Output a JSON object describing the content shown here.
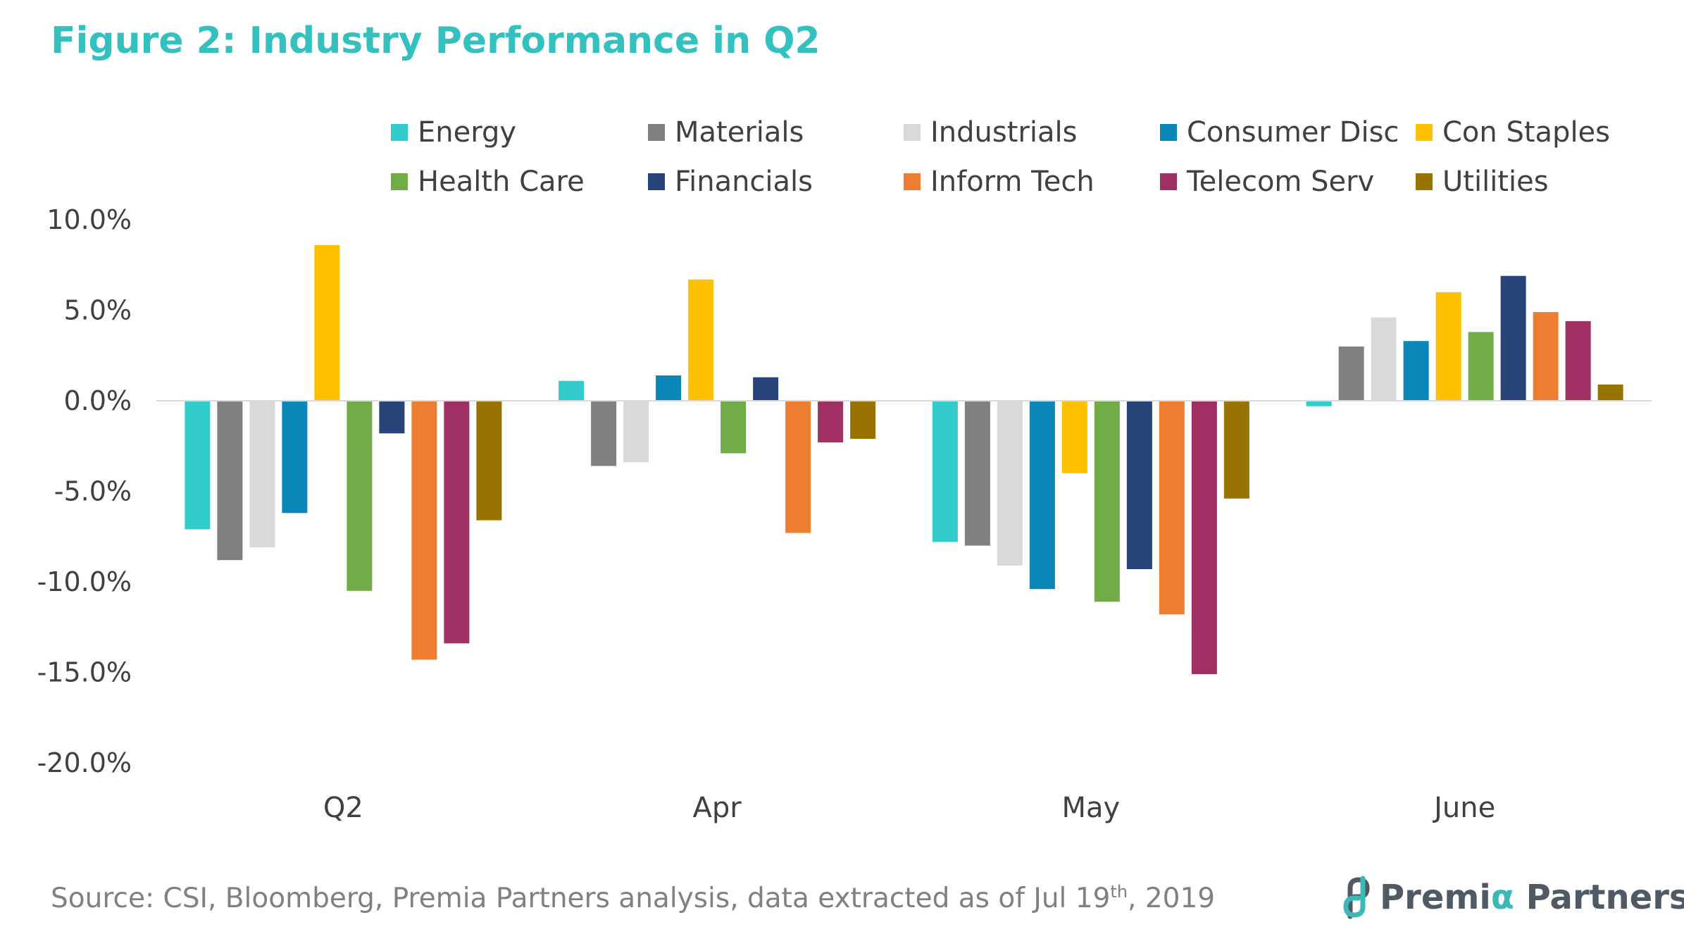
{
  "chart_data": {
    "type": "bar",
    "title": "Figure 2: Industry Performance in Q2",
    "categories": [
      "Q2",
      "Apr",
      "May",
      "June"
    ],
    "ylim": [
      -20,
      10
    ],
    "yticks": [
      "10.0%",
      "5.0%",
      "0.0%",
      "-5.0%",
      "-10.0%",
      "-15.0%",
      "-20.0%"
    ],
    "ytick_values": [
      10,
      5,
      0,
      -5,
      -10,
      -15,
      -20
    ],
    "legend_position": "top",
    "grid": false,
    "series": [
      {
        "name": "Energy",
        "color": "#33cccc",
        "values": [
          -7.1,
          1.1,
          -7.8,
          -0.3
        ]
      },
      {
        "name": "Materials",
        "color": "#808080",
        "values": [
          -8.8,
          -3.6,
          -8.0,
          3.0
        ]
      },
      {
        "name": "Industrials",
        "color": "#d9d9d9",
        "values": [
          -8.1,
          -3.4,
          -9.1,
          4.6
        ]
      },
      {
        "name": "Consumer Disc",
        "color": "#0a86b8",
        "values": [
          -6.2,
          1.4,
          -10.4,
          3.3
        ]
      },
      {
        "name": "Con Staples",
        "color": "#ffc000",
        "values": [
          8.6,
          6.7,
          -4.0,
          6.0
        ]
      },
      {
        "name": "Health Care",
        "color": "#70ad47",
        "values": [
          -10.5,
          -2.9,
          -11.1,
          3.8
        ]
      },
      {
        "name": "Financials",
        "color": "#264478",
        "values": [
          -1.8,
          1.3,
          -9.3,
          6.9
        ]
      },
      {
        "name": "Inform Tech",
        "color": "#ed7d31",
        "values": [
          -14.3,
          -7.3,
          -11.8,
          4.9
        ]
      },
      {
        "name": "Telecom Serv",
        "color": "#9e3064",
        "values": [
          -13.4,
          -2.3,
          -15.1,
          4.4
        ]
      },
      {
        "name": "Utilities",
        "color": "#997300",
        "values": [
          -6.6,
          -2.1,
          -5.4,
          0.9
        ]
      }
    ]
  },
  "source": {
    "prefix": "Source: CSI, Bloomberg, Premia Partners analysis, data extracted as of Jul 19",
    "sup": "th",
    "suffix": ", 2019"
  },
  "logo": {
    "part1": "Premi",
    "alpha": "α",
    "part2": " Partners",
    "icon": "premia-logo-icon"
  }
}
